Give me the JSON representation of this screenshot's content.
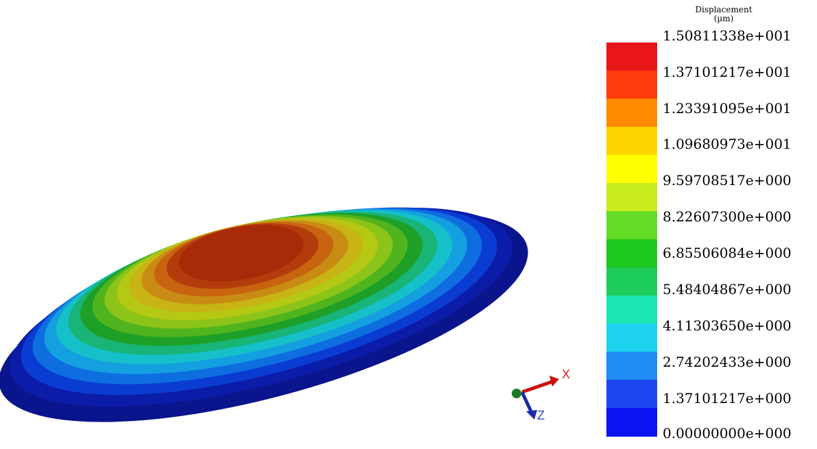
{
  "legend": {
    "title": "Displacement",
    "unit": "(µm)",
    "labels": [
      "1.50811338e+001",
      "1.37101217e+001",
      "1.23391095e+001",
      "1.09680973e+001",
      "9.59708517e+000",
      "8.22607300e+000",
      "6.85506084e+000",
      "5.48404867e+000",
      "4.11303650e+000",
      "2.74202433e+000",
      "1.37101217e+000",
      "0.00000000e+000"
    ],
    "colors": [
      "#e8161a",
      "#ff3c0c",
      "#ff8c00",
      "#ffd500",
      "#ffff00",
      "#c8ec1e",
      "#64dc28",
      "#1ec81e",
      "#1ecc5a",
      "#1ee6b4",
      "#1ed2f0",
      "#1e8cf0",
      "#1e46f0",
      "#0a14f0"
    ]
  },
  "triad": {
    "x_label": "X",
    "z_label": "Z"
  }
}
